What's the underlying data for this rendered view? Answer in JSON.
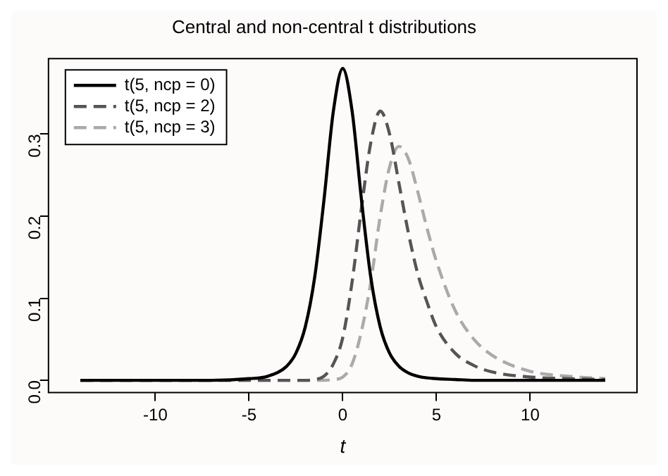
{
  "chart_data": {
    "type": "line",
    "title": "Central and non-central t distributions",
    "xlabel": "t",
    "x": [
      -14,
      -10,
      -7,
      -5,
      -4,
      -3,
      -2.5,
      -2,
      -1.5,
      -1,
      -0.5,
      0,
      0.5,
      1,
      1.5,
      2,
      2.5,
      3,
      3.5,
      4,
      4.5,
      5,
      6,
      7,
      8,
      10,
      12,
      14
    ],
    "series": [
      {
        "name": "t(5, ncp = 0)",
        "color": "#000000",
        "line_style": "solid",
        "values": [
          0,
          0,
          0,
          0.002,
          0.005,
          0.017,
          0.033,
          0.065,
          0.125,
          0.22,
          0.328,
          0.38,
          0.328,
          0.22,
          0.125,
          0.065,
          0.033,
          0.017,
          0.009,
          0.005,
          0.003,
          0.002,
          0.001,
          0,
          0,
          0,
          0,
          0
        ]
      },
      {
        "name": "t(5, ncp = 2)",
        "color": "#555555",
        "line_style": "dashed",
        "values": [
          0,
          0,
          0,
          0,
          0,
          0,
          0,
          0,
          0.001,
          0.005,
          0.02,
          0.052,
          0.12,
          0.21,
          0.29,
          0.328,
          0.3,
          0.24,
          0.18,
          0.13,
          0.095,
          0.065,
          0.033,
          0.018,
          0.01,
          0.004,
          0.002,
          0.001
        ]
      },
      {
        "name": "t(5, ncp = 3)",
        "color": "#aaaaaa",
        "line_style": "dashed",
        "values": [
          0,
          0,
          0,
          0,
          0,
          0,
          0,
          0,
          0,
          0,
          0.001,
          0.004,
          0.02,
          0.06,
          0.12,
          0.2,
          0.26,
          0.285,
          0.27,
          0.23,
          0.185,
          0.145,
          0.085,
          0.05,
          0.03,
          0.011,
          0.005,
          0.002
        ]
      }
    ],
    "xlim": [
      -15.7,
      15.7
    ],
    "xticks": [
      -10,
      -5,
      0,
      5,
      10
    ],
    "ylim": [
      -0.015,
      0.392
    ],
    "yticks": [
      {
        "value": 0,
        "label": "0.0"
      },
      0.1,
      0.2,
      0.3
    ],
    "grid": false,
    "legend": "top left",
    "marker": "none"
  }
}
